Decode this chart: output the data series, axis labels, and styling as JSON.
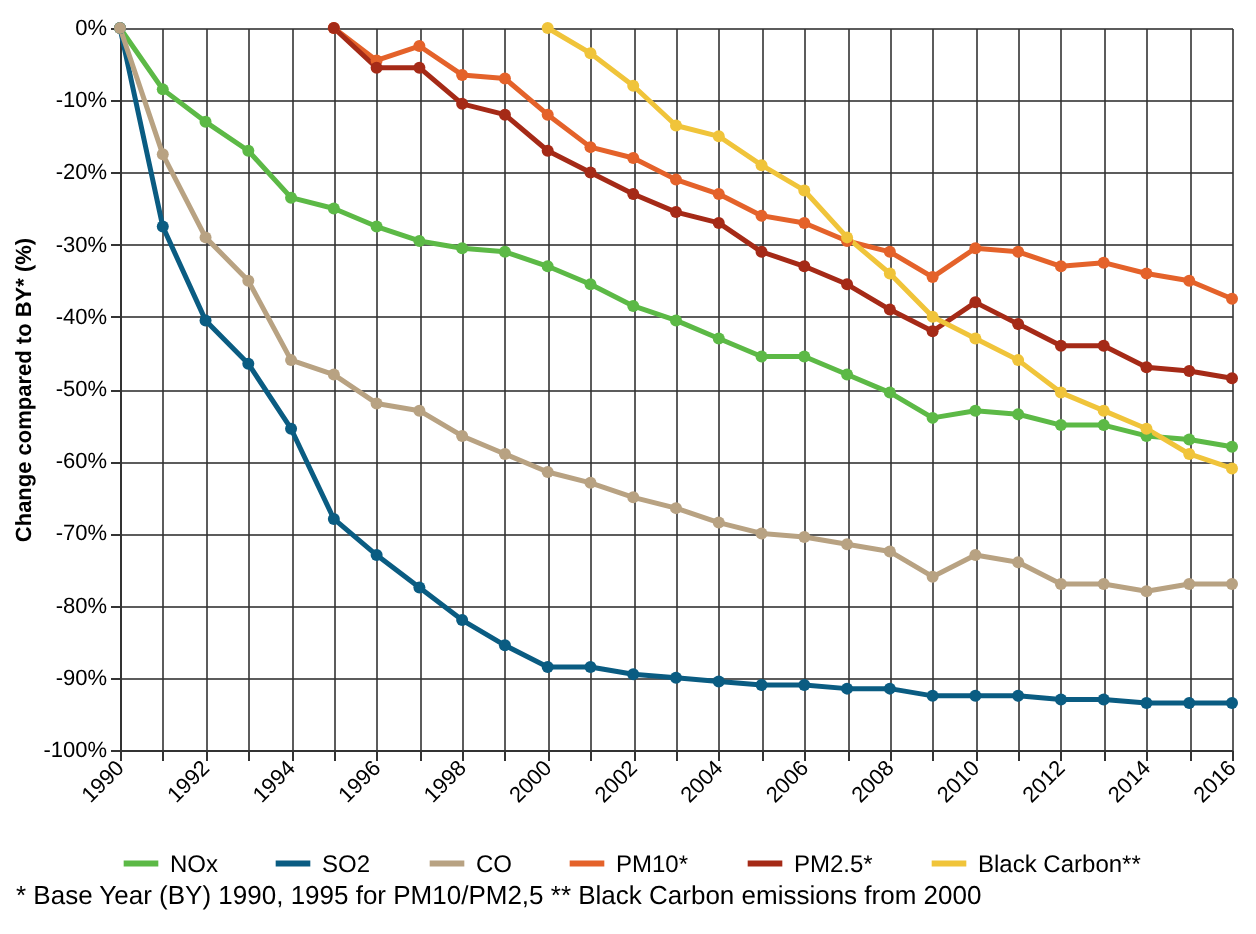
{
  "chart_data": {
    "type": "line",
    "ylabel": "Change compared to BY* (%)",
    "x": [
      1990,
      1991,
      1992,
      1993,
      1994,
      1995,
      1996,
      1997,
      1998,
      1999,
      2000,
      2001,
      2002,
      2003,
      2004,
      2005,
      2006,
      2007,
      2008,
      2009,
      2010,
      2011,
      2012,
      2013,
      2014,
      2015,
      2016
    ],
    "xlim": [
      1990,
      2016
    ],
    "xticks": [
      1990,
      {
        "value": 1991,
        "label": null
      },
      1992,
      {
        "value": 1993,
        "label": null
      },
      1994,
      {
        "value": 1995,
        "label": null
      },
      1996,
      {
        "value": 1997,
        "label": null
      },
      1998,
      {
        "value": 1999,
        "label": null
      },
      2000,
      {
        "value": 2001,
        "label": null
      },
      2002,
      {
        "value": 2003,
        "label": null
      },
      2004,
      {
        "value": 2005,
        "label": null
      },
      2006,
      {
        "value": 2007,
        "label": null
      },
      2008,
      {
        "value": 2009,
        "label": null
      },
      2010,
      {
        "value": 2011,
        "label": null
      },
      2012,
      {
        "value": 2013,
        "label": null
      },
      2014,
      {
        "value": 2015,
        "label": null
      },
      2016
    ],
    "ylim": [
      -100,
      0
    ],
    "yticks": [
      {
        "value": -100,
        "label": "-100%"
      },
      {
        "value": -90,
        "label": "-90%"
      },
      {
        "value": -80,
        "label": "-80%"
      },
      {
        "value": -70,
        "label": "-70%"
      },
      {
        "value": -60,
        "label": "-60%"
      },
      {
        "value": -50,
        "label": "-50%"
      },
      {
        "value": -40,
        "label": "-40%"
      },
      {
        "value": -30,
        "label": "-30%"
      },
      {
        "value": -20,
        "label": "-20%"
      },
      {
        "value": -10,
        "label": "-10%"
      },
      {
        "value": 0,
        "label": "0%"
      }
    ],
    "grid": true,
    "legend": "bottom",
    "marker": "circle",
    "line_style": "solid",
    "series": [
      {
        "name": "NOx",
        "color": "#5cb946",
        "values": [
          0,
          -8.5,
          -13,
          -17,
          -23.5,
          -25,
          -27.5,
          -29.5,
          -30.5,
          -31,
          -33,
          -35.5,
          -38.5,
          -40.5,
          -43,
          -45.5,
          -45.5,
          -48,
          -50.5,
          -54,
          -53,
          -53.5,
          -55,
          -55,
          -56.5,
          -57,
          -58
        ]
      },
      {
        "name": "SO2",
        "color": "#0a5c82",
        "values": [
          0,
          -27.5,
          -40.5,
          -46.5,
          -55.5,
          -68,
          -73,
          -77.5,
          -82,
          -85.5,
          -88.5,
          -88.5,
          -89.5,
          -90,
          -90.5,
          -91,
          -91,
          -91.5,
          -91.5,
          -92.5,
          -92.5,
          -92.5,
          -93,
          -93,
          -93.5,
          -93.5,
          -93.5
        ]
      },
      {
        "name": "CO",
        "color": "#b8a282",
        "values": [
          0,
          -17.5,
          -29,
          -35,
          -46,
          -48,
          -52,
          -53,
          -56.5,
          -59,
          -61.5,
          -63,
          -65,
          -66.5,
          -68.5,
          -70,
          -70.5,
          -71.5,
          -72.5,
          -76,
          -73,
          -74,
          -77,
          -77,
          -78,
          -77,
          -77
        ]
      },
      {
        "name": "PM10*",
        "color": "#e4622a",
        "x": [
          1995,
          1996,
          1997,
          1998,
          1999,
          2000,
          2001,
          2002,
          2003,
          2004,
          2005,
          2006,
          2007,
          2008,
          2009,
          2010,
          2011,
          2012,
          2013,
          2014,
          2015,
          2016
        ],
        "values": [
          0,
          -4.5,
          -2.5,
          -6.5,
          -7,
          -12,
          -16.5,
          -18,
          -21,
          -23,
          -26,
          -27,
          -29.5,
          -31,
          -34.5,
          -30.5,
          -31,
          -33,
          -32.5,
          -34,
          -35,
          -37.5
        ]
      },
      {
        "name": "PM2.5*",
        "color": "#a52a17",
        "x": [
          1995,
          1996,
          1997,
          1998,
          1999,
          2000,
          2001,
          2002,
          2003,
          2004,
          2005,
          2006,
          2007,
          2008,
          2009,
          2010,
          2011,
          2012,
          2013,
          2014,
          2015,
          2016
        ],
        "values": [
          0,
          -5.5,
          -5.5,
          -10.5,
          -12,
          -17,
          -20,
          -23,
          -25.5,
          -27,
          -31,
          -33,
          -35.5,
          -39,
          -42,
          -38,
          -41,
          -44,
          -44,
          -47,
          -47.5,
          -48.5
        ]
      },
      {
        "name": "Black Carbon**",
        "color": "#f0c43a",
        "x": [
          2000,
          2001,
          2002,
          2003,
          2004,
          2005,
          2006,
          2007,
          2008,
          2009,
          2010,
          2011,
          2012,
          2013,
          2014,
          2015,
          2016
        ],
        "values": [
          0,
          -3.5,
          -8,
          -13.5,
          -15,
          -19,
          -22.5,
          -29,
          -34,
          -40,
          -43,
          -46,
          -50.5,
          -53,
          -55.5,
          -59,
          -61
        ]
      }
    ],
    "annotations": [
      "* Base Year (BY) 1990, 1995 for PM10/PM2,5 ** Black Carbon emissions from 2000"
    ]
  }
}
